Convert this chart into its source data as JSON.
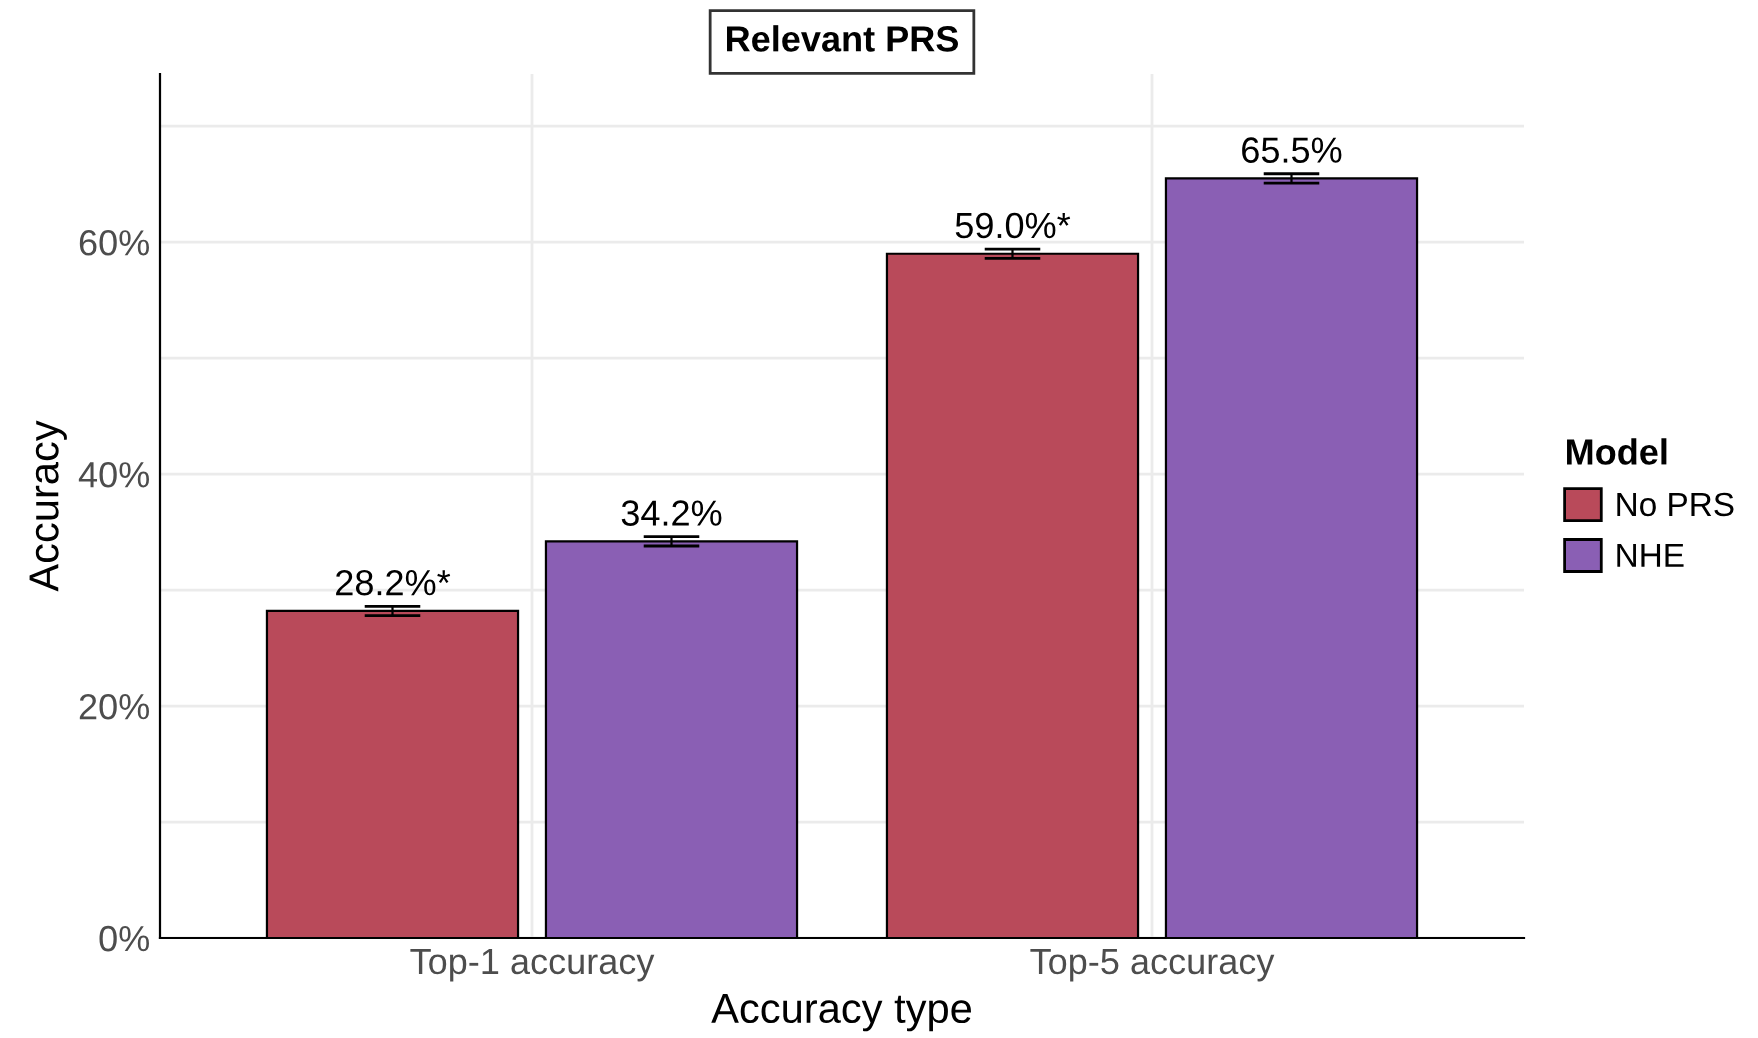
{
  "chart_data": {
    "type": "bar",
    "title": "Relevant PRS",
    "xlabel": "Accuracy type",
    "ylabel": "Accuracy",
    "legend_title": "Model",
    "categories": [
      "Top-1 accuracy",
      "Top-5 accuracy"
    ],
    "series": [
      {
        "name": "No PRS",
        "color": "#b94a5a",
        "values": [
          28.2,
          59.0
        ],
        "errors": [
          0.4,
          0.4
        ],
        "value_labels": [
          "28.2%*",
          "59.0%*"
        ]
      },
      {
        "name": "NHE",
        "color": "#8a5fb4",
        "values": [
          34.2,
          65.5
        ],
        "errors": [
          0.4,
          0.4
        ],
        "value_labels": [
          "34.2%",
          "65.5%"
        ]
      }
    ],
    "ylim": [
      0,
      74.5
    ],
    "yticks": [
      {
        "value": 0,
        "label": "0%"
      },
      {
        "value": 10,
        "label": null
      },
      {
        "value": 20,
        "label": "20%"
      },
      {
        "value": 30,
        "label": null
      },
      {
        "value": 40,
        "label": "40%"
      },
      {
        "value": 50,
        "label": null
      },
      {
        "value": 60,
        "label": "60%"
      },
      {
        "value": 70,
        "label": null
      }
    ],
    "grid": true,
    "legend": "right"
  }
}
